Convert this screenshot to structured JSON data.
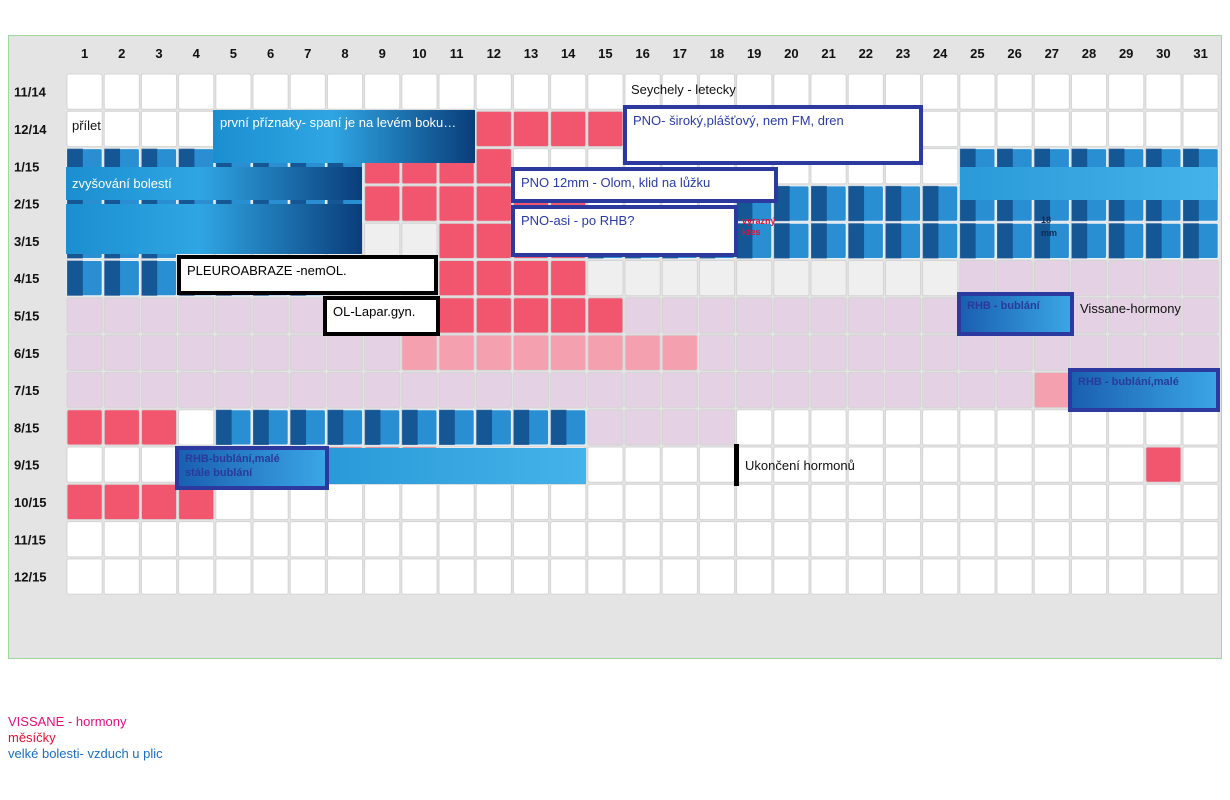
{
  "chart_data": {
    "type": "heatmap",
    "columns": [
      "1",
      "2",
      "3",
      "4",
      "5",
      "6",
      "7",
      "8",
      "9",
      "10",
      "11",
      "12",
      "13",
      "14",
      "15",
      "16",
      "17",
      "18",
      "19",
      "20",
      "21",
      "22",
      "23",
      "24",
      "25",
      "26",
      "27",
      "28",
      "29",
      "30",
      "31"
    ],
    "rows": [
      "11/14",
      "12/14",
      "1/15",
      "2/15",
      "3/15",
      "4/15",
      "5/15",
      "6/15",
      "7/15",
      "8/15",
      "9/15",
      "10/15",
      "11/15",
      "12/15"
    ],
    "categories": {
      "hormony": "VISSANE - hormony",
      "mesicky": "měsíčky",
      "bolesti": "velké bolesti- vzduch u plic"
    },
    "marked_days": {
      "mesicky": [
        {
          "row": "12/14",
          "days": [
            12,
            13,
            14,
            15
          ]
        },
        {
          "row": "1/15",
          "days": [
            9,
            10,
            11,
            12
          ]
        },
        {
          "row": "2/15",
          "days": [
            9,
            10,
            11,
            12,
            13,
            14
          ]
        },
        {
          "row": "3/15",
          "days": [
            11,
            12,
            13,
            14
          ]
        },
        {
          "row": "4/15",
          "days": [
            11,
            12,
            13,
            14
          ]
        },
        {
          "row": "5/15",
          "days": [
            11,
            12,
            13,
            14,
            15
          ]
        },
        {
          "row": "6/15",
          "days": [
            10,
            11,
            12,
            13,
            14,
            15,
            16,
            17
          ]
        },
        {
          "row": "7/15",
          "days": [
            27,
            28,
            29,
            30,
            31
          ]
        },
        {
          "row": "8/15",
          "days": [
            1,
            2,
            3
          ]
        },
        {
          "row": "9/15",
          "days": [
            6,
            7,
            8,
            9,
            10,
            30
          ]
        },
        {
          "row": "10/15",
          "days": [
            1,
            2,
            3,
            4
          ]
        }
      ],
      "bolesti": [
        {
          "row": "12/14",
          "days": [
            5,
            6,
            7,
            8,
            9,
            10,
            11
          ]
        },
        {
          "row": "1/15",
          "days": [
            1,
            2,
            3,
            4,
            5,
            6,
            7,
            8,
            25,
            26,
            27,
            28,
            29,
            30,
            31
          ]
        },
        {
          "row": "2/15",
          "days": [
            1,
            2,
            3,
            4,
            5,
            6,
            7,
            8,
            19,
            20,
            21,
            22,
            23,
            24,
            25,
            26,
            27,
            28,
            29,
            30,
            31
          ]
        },
        {
          "row": "3/15",
          "days": [
            1,
            2,
            3,
            15,
            16,
            17,
            18,
            19,
            20,
            21,
            22,
            23,
            24,
            25,
            26,
            27,
            28,
            29,
            30,
            31
          ]
        },
        {
          "row": "4/15",
          "days": [
            1,
            2,
            3,
            4,
            5,
            6,
            7
          ]
        },
        {
          "row": "8/15",
          "days": [
            5,
            6,
            7,
            8,
            9,
            10,
            11,
            12,
            13,
            14
          ]
        }
      ],
      "hormony": [
        {
          "row": "4/15",
          "days": [
            25,
            26,
            27,
            28,
            29,
            30,
            31
          ]
        },
        {
          "row": "5/15",
          "days": [
            1,
            2,
            3,
            4,
            5,
            6,
            7,
            8,
            9,
            10,
            16,
            17,
            18,
            19,
            20,
            21,
            22,
            23,
            24,
            25,
            26,
            27,
            28,
            29,
            30,
            31
          ]
        },
        {
          "row": "6/15",
          "days": [
            1,
            2,
            3,
            4,
            5,
            6,
            7,
            8,
            9,
            18,
            19,
            20,
            21,
            22,
            23,
            24,
            25,
            26,
            27,
            28,
            29,
            30,
            31
          ]
        },
        {
          "row": "7/15",
          "days": [
            1,
            2,
            3,
            4,
            5,
            6,
            7,
            8,
            9,
            10,
            11,
            12,
            13,
            14,
            15,
            16,
            17,
            18,
            19,
            20,
            21,
            22,
            23,
            24,
            25,
            26
          ]
        },
        {
          "row": "8/15",
          "days": [
            15,
            16,
            17,
            18
          ]
        }
      ]
    },
    "annotations": {
      "r0_seychely": "Seychely - letecky",
      "r1_prilet": "přílet",
      "r1_priznaky": "první příznaky- spaní je na levém boku…",
      "r1_pno": "PNO- široký,plášťový, nem FM, dren",
      "r2_zvysovani": "zvyšování bolestí",
      "r2_pno": "PNO 12mm - Olom, klid na lůžku",
      "r3_pno": "PNO-asi - po RHB?",
      "r3_vyrazny": "výrazný",
      "r3_kres": "křes",
      "r3_mm": "18",
      "r3_mm2": "mm",
      "r4_pleuro": "PLEUROABRAZE -nemOL.",
      "r5_ol": "OL-Lapar.gyn.",
      "r5_rhb": "RHB - bublání",
      "r5_vissane": "Vissane-hormony",
      "r7_rhb": "RHB - bublání,malé",
      "r9_rhb": "RHB-bublání,malé",
      "r9_rhb2": "stále bublání",
      "r9_ukonceni": "Ukončení hormonů"
    }
  },
  "legend": {
    "hormony": {
      "label": "VISSANE - hormony",
      "color": "#e0107a"
    },
    "mesicky": {
      "label": "měsíčky",
      "color": "#e8102e"
    },
    "bolesti": {
      "label": "velké bolesti- vzduch u plic",
      "color": "#1a6fc0"
    }
  },
  "colors": {
    "mesicky_cell": "#f2566e",
    "mesicky_light": "#f5a0ae",
    "hormony_cell": "#e4d1e3",
    "empty_cell": "#ffffff",
    "empty_cell_alt": "#efefef"
  }
}
